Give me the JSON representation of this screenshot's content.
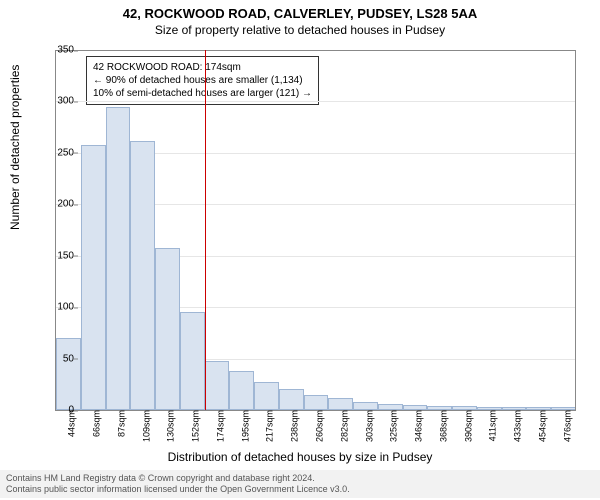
{
  "title_main": "42, ROCKWOOD ROAD, CALVERLEY, PUDSEY, LS28 5AA",
  "title_sub": "Size of property relative to detached houses in Pudsey",
  "ylabel": "Number of detached properties",
  "xlabel": "Distribution of detached houses by size in Pudsey",
  "chart": {
    "type": "histogram",
    "ylim": [
      0,
      350
    ],
    "ytick_step": 50,
    "bar_fill": "#d9e3f0",
    "bar_stroke": "#9fb6d4",
    "grid_color": "#e6e6e6",
    "reference_line_color": "#cc0000",
    "reference_x": 174,
    "categories": [
      "44sqm",
      "66sqm",
      "87sqm",
      "109sqm",
      "130sqm",
      "152sqm",
      "174sqm",
      "195sqm",
      "217sqm",
      "238sqm",
      "260sqm",
      "282sqm",
      "303sqm",
      "325sqm",
      "346sqm",
      "368sqm",
      "390sqm",
      "411sqm",
      "433sqm",
      "454sqm",
      "476sqm"
    ],
    "values": [
      70,
      258,
      295,
      262,
      158,
      95,
      48,
      38,
      27,
      20,
      15,
      12,
      8,
      6,
      5,
      4,
      4,
      3,
      3,
      3,
      3
    ]
  },
  "annotation": {
    "line1": "42 ROCKWOOD ROAD: 174sqm",
    "line2": "← 90% of detached houses are smaller (1,134)",
    "line3": "10% of semi-detached houses are larger (121) →"
  },
  "footer": {
    "line1": "Contains HM Land Registry data © Crown copyright and database right 2024.",
    "line2": "Contains public sector information licensed under the Open Government Licence v3.0."
  }
}
